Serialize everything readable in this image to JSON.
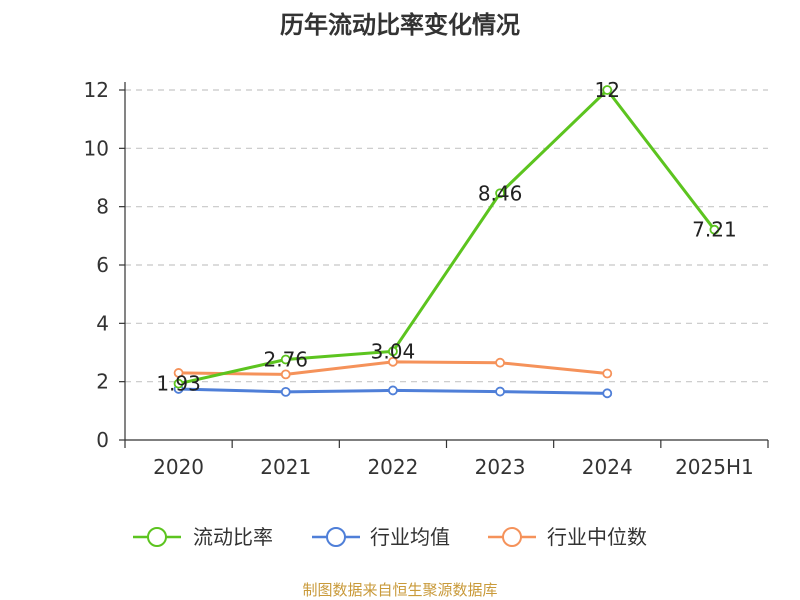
{
  "chart_data": {
    "type": "line",
    "title": "历年流动比率变化情况",
    "xlabel": "",
    "ylabel": "",
    "categories": [
      "2020",
      "2021",
      "2022",
      "2023",
      "2024",
      "2025H1"
    ],
    "ylim": [
      0,
      12
    ],
    "yticks": [
      0,
      2,
      4,
      6,
      8,
      10,
      12
    ],
    "grid": true,
    "legend_position": "bottom",
    "series": [
      {
        "name": "流动比率",
        "color": "#5cc41f",
        "values": [
          1.93,
          2.76,
          3.04,
          8.46,
          12,
          7.21
        ],
        "labels": [
          "1.93",
          "2.76",
          "3.04",
          "8.46",
          "12",
          "7.21"
        ]
      },
      {
        "name": "行业均值",
        "color": "#4f7fd8",
        "values": [
          1.75,
          1.65,
          1.7,
          1.66,
          1.6,
          null
        ]
      },
      {
        "name": "行业中位数",
        "color": "#f5925a",
        "values": [
          2.3,
          2.25,
          2.68,
          2.65,
          2.28,
          null
        ]
      }
    ]
  },
  "source_text": "制图数据来自恒生聚源数据库",
  "colors": {
    "axis": "#333333",
    "grid": "#c8c8c8",
    "source": "#c99a3a"
  }
}
